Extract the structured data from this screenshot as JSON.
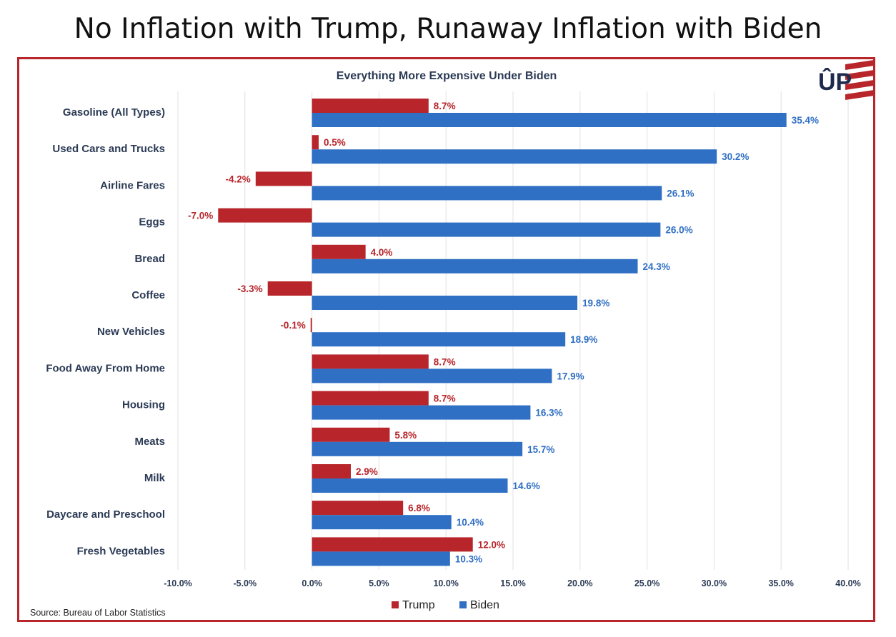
{
  "page": {
    "title": "No Inflation with Trump, Runaway Inflation with Biden",
    "logo_text": "ÛP"
  },
  "chart_data": {
    "type": "bar",
    "orientation": "horizontal",
    "title": "Everything More Expensive Under Biden",
    "source": "Source: Bureau of Labor Statistics",
    "categories": [
      "Gasoline (All Types)",
      "Used Cars and Trucks",
      "Airline Fares",
      "Eggs",
      "Bread",
      "Coffee",
      "New Vehicles",
      "Food Away From Home",
      "Housing",
      "Meats",
      "Milk",
      "Daycare and Preschool",
      "Fresh Vegetables"
    ],
    "series": [
      {
        "name": "Trump",
        "color": "#b8252a",
        "values": [
          8.7,
          0.5,
          -4.2,
          -7.0,
          4.0,
          -3.3,
          -0.1,
          8.7,
          8.7,
          5.8,
          2.9,
          6.8,
          12.0
        ]
      },
      {
        "name": "Biden",
        "color": "#2f6fc4",
        "values": [
          35.4,
          30.2,
          26.1,
          26.0,
          24.3,
          19.8,
          18.9,
          17.9,
          16.3,
          15.7,
          14.6,
          10.4,
          10.3
        ]
      }
    ],
    "data_label_format": "0.0%",
    "xlim": [
      -10,
      40
    ],
    "xticks": [
      "-10.0%",
      "-5.0%",
      "0.0%",
      "5.0%",
      "10.0%",
      "15.0%",
      "20.0%",
      "25.0%",
      "30.0%",
      "35.0%",
      "40.0%"
    ],
    "grid": true,
    "legend_position": "bottom"
  }
}
